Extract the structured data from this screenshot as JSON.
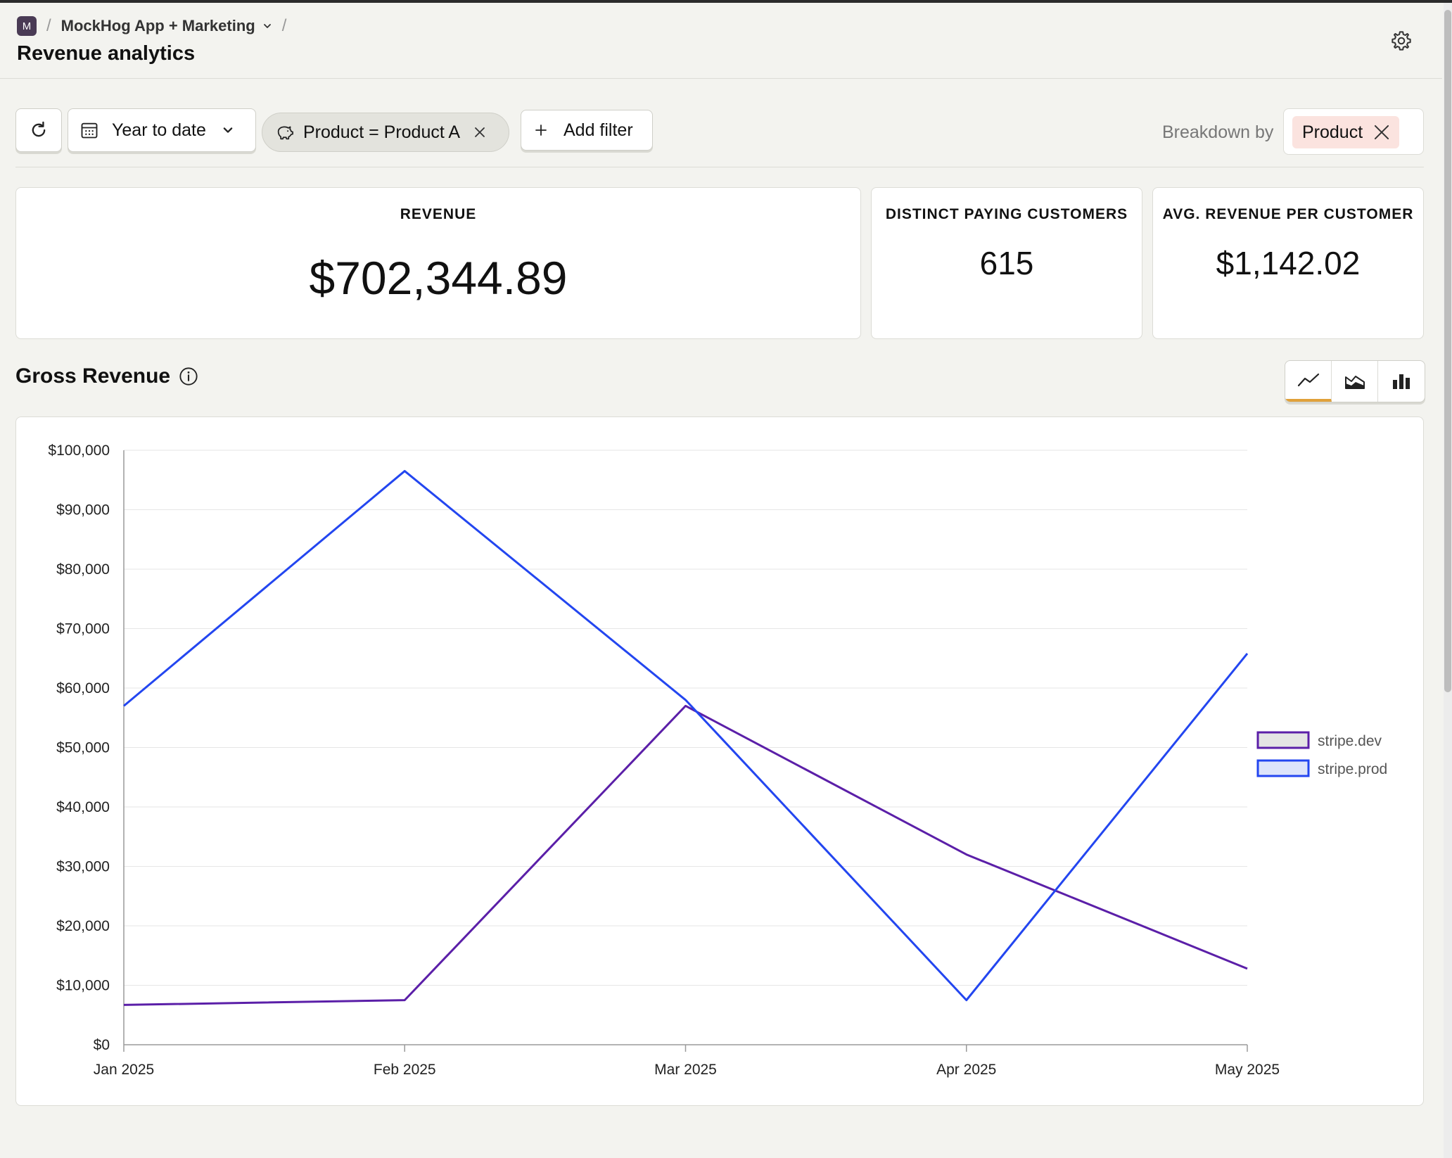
{
  "header": {
    "project_initial": "M",
    "project_name": "MockHog App + Marketing",
    "title": "Revenue analytics"
  },
  "filters": {
    "date_range": "Year to date",
    "active_filter": "Product = Product A",
    "add_filter_label": "Add filter",
    "breakdown_label": "Breakdown by",
    "breakdown_value": "Product"
  },
  "metrics": {
    "revenue": {
      "title": "REVENUE",
      "value": "$702,344.89"
    },
    "customers": {
      "title": "DISTINCT PAYING CUSTOMERS",
      "value": "615"
    },
    "avg": {
      "title": "AVG. REVENUE PER CUSTOMER",
      "value": "$1,142.02"
    }
  },
  "section": {
    "title": "Gross Revenue",
    "chart_modes": [
      "line",
      "area",
      "bar"
    ],
    "active_mode": "line"
  },
  "chart_data": {
    "type": "line",
    "categories": [
      "Jan 2025",
      "Feb 2025",
      "Mar 2025",
      "Apr 2025",
      "May 2025"
    ],
    "series": [
      {
        "name": "stripe.dev",
        "color": "#5b1fa8",
        "values": [
          6700,
          7500,
          57000,
          32000,
          12800
        ]
      },
      {
        "name": "stripe.prod",
        "color": "#2346f0",
        "values": [
          57000,
          96500,
          58000,
          7500,
          65800
        ]
      }
    ],
    "ylim": [
      0,
      100000
    ],
    "yticks": [
      0,
      10000,
      20000,
      30000,
      40000,
      50000,
      60000,
      70000,
      80000,
      90000,
      100000
    ],
    "ytick_labels": [
      "$0",
      "$10,000",
      "$20,000",
      "$30,000",
      "$40,000",
      "$50,000",
      "$60,000",
      "$70,000",
      "$80,000",
      "$90,000",
      "$100,000"
    ],
    "grid": true,
    "legend": "right"
  }
}
